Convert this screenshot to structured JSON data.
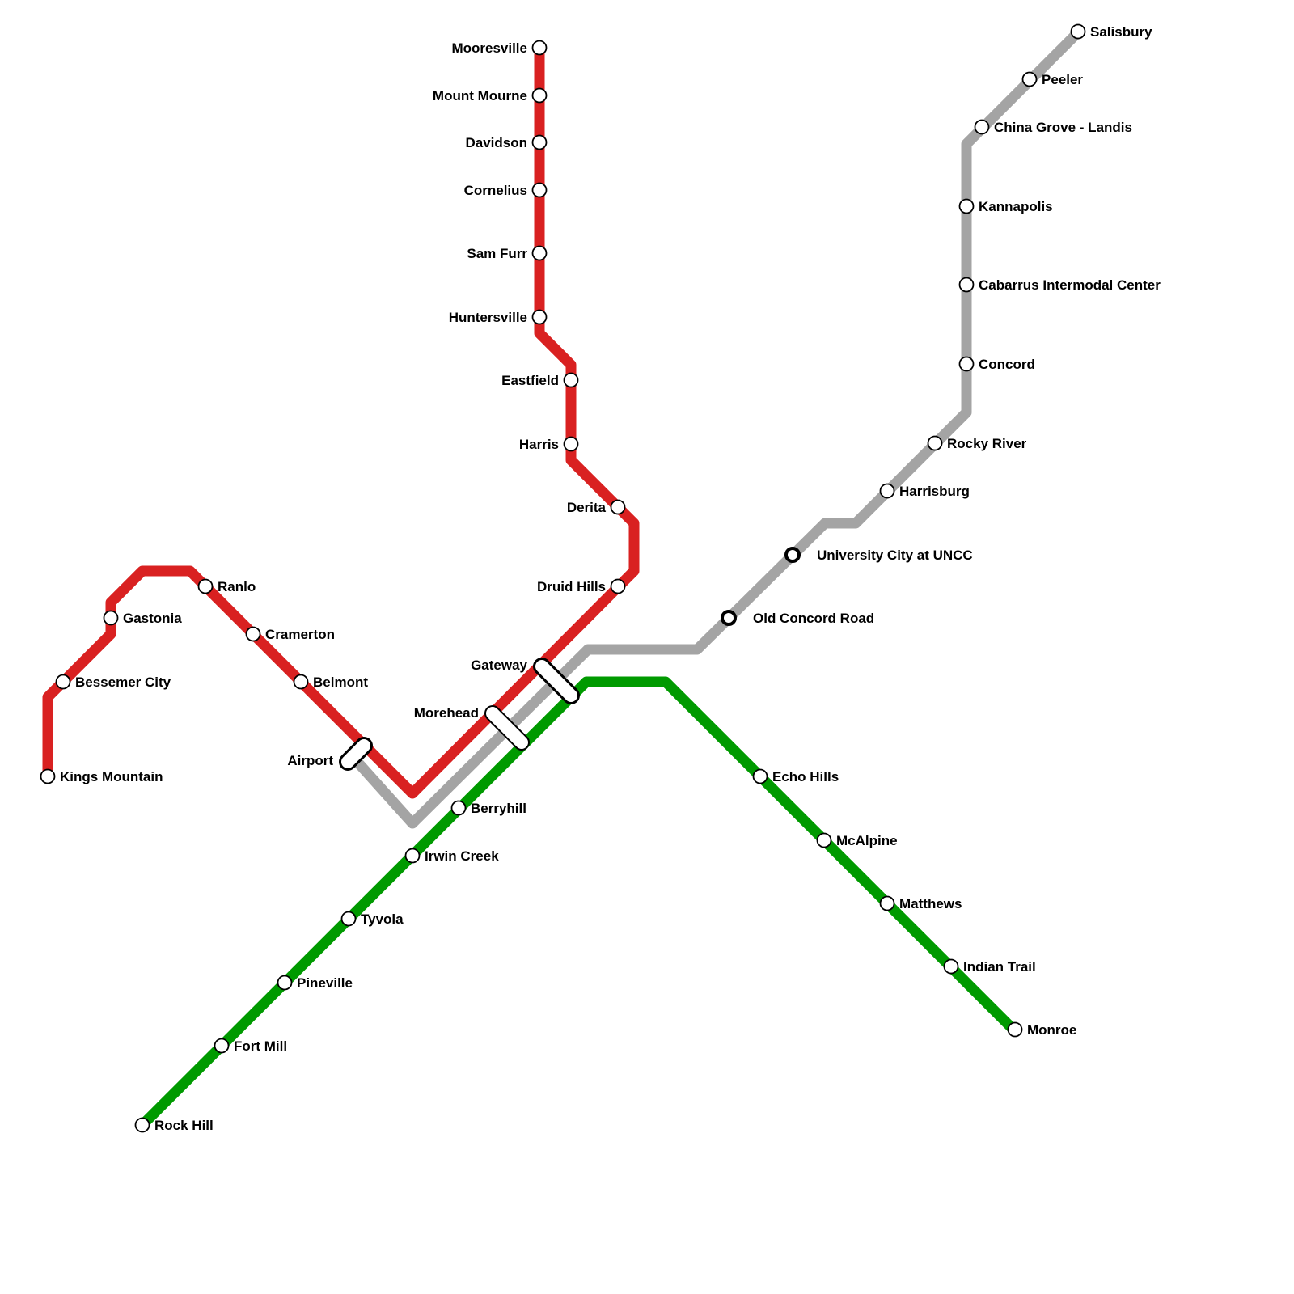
{
  "colors": {
    "red": "#d92121",
    "gray": "#a4a4a4",
    "green": "#009a00"
  },
  "lines": [
    {
      "id": "red",
      "color_key": "red"
    },
    {
      "id": "gray",
      "color_key": "gray"
    },
    {
      "id": "green",
      "color_key": "green"
    }
  ],
  "stations": {
    "mooresville": "Mooresville",
    "mount_mourne": "Mount Mourne",
    "davidson": "Davidson",
    "cornelius": "Cornelius",
    "sam_furr": "Sam Furr",
    "huntersville": "Huntersville",
    "eastfield": "Eastfield",
    "harris": "Harris",
    "derita": "Derita",
    "druid_hills": "Druid Hills",
    "gateway": "Gateway",
    "morehead": "Morehead",
    "airport": "Airport",
    "belmont": "Belmont",
    "cramerton": "Cramerton",
    "ranlo": "Ranlo",
    "gastonia": "Gastonia",
    "bessemer_city": "Bessemer City",
    "kings_mountain": "Kings Mountain",
    "salisbury": "Salisbury",
    "peeler": "Peeler",
    "china_grove": "China Grove - Landis",
    "kannapolis": "Kannapolis",
    "cabarrus": "Cabarrus Intermodal Center",
    "concord": "Concord",
    "rocky_river": "Rocky River",
    "harrisburg": "Harrisburg",
    "university_city": "University City at UNCC",
    "old_concord": "Old Concord Road",
    "berryhill": "Berryhill",
    "irwin_creek": "Irwin Creek",
    "tyvola": "Tyvola",
    "pineville": "Pineville",
    "fort_mill": "Fort Mill",
    "rock_hill": "Rock Hill",
    "echo_hills": "Echo Hills",
    "mcalpine": "McAlpine",
    "matthews": "Matthews",
    "indian_trail": "Indian Trail",
    "monroe": "Monroe"
  }
}
